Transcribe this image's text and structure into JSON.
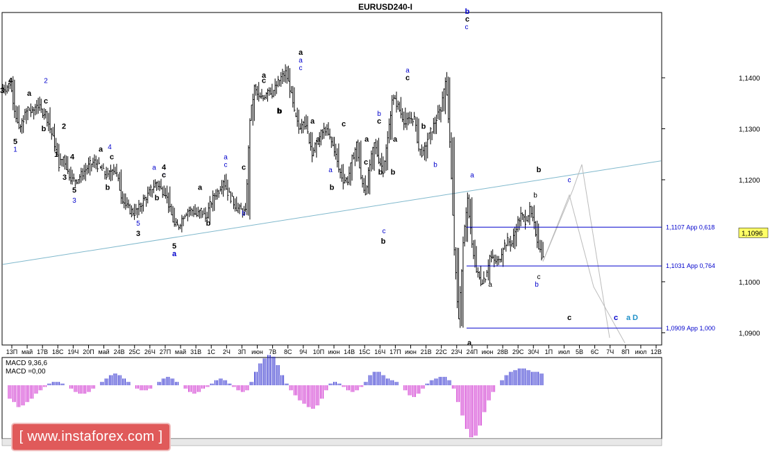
{
  "chart_data": {
    "type": "candlestick",
    "title": "EURUSD240-I",
    "ylim": [
      1.0876,
      1.1528
    ],
    "y_ticks": [
      "1,1400",
      "1,1300",
      "1,1200",
      "1,1000",
      "1,0900"
    ],
    "current_price": "1,1096",
    "x_ticks": [
      "13П",
      "май",
      "17В",
      "18С",
      "19Ч",
      "20П",
      "май",
      "24В",
      "25С",
      "26Ч",
      "27П",
      "май",
      "31В",
      "1С",
      "2Ч",
      "3П",
      "июн",
      "7В",
      "8С",
      "9Ч",
      "10П",
      "июн",
      "14В",
      "15С",
      "16Ч",
      "17П",
      "июн",
      "21В",
      "22С",
      "23Ч",
      "24П",
      "июн",
      "28В",
      "29С",
      "30Ч",
      "1П",
      "июл",
      "5В",
      "6С",
      "7Ч",
      "8П",
      "июл",
      "12В"
    ],
    "levels": [
      {
        "price": 1.1107,
        "label": "1,1107 Арр 0,618"
      },
      {
        "price": 1.1031,
        "label": "1,1031 Арр 0,764"
      },
      {
        "price": 1.0909,
        "label": "1,0909 Арр 1,000"
      }
    ],
    "trendline": {
      "start_price": 1.1034,
      "end_price": 1.1237
    },
    "price_path": [
      1.138,
      1.139,
      1.134,
      1.1295,
      1.132,
      1.134,
      1.133,
      1.135,
      1.1335,
      1.133,
      1.13,
      1.127,
      1.123,
      1.1245,
      1.1215,
      1.12,
      1.12,
      1.121,
      1.122,
      1.123,
      1.1235,
      1.1225,
      1.1215,
      1.1205,
      1.1225,
      1.121,
      1.117,
      1.115,
      1.114,
      1.1135,
      1.1145,
      1.116,
      1.117,
      1.1185,
      1.1195,
      1.118,
      1.1175,
      1.114,
      1.111,
      1.111,
      1.113,
      1.114,
      1.114,
      1.113,
      1.114,
      1.1125,
      1.115,
      1.117,
      1.118,
      1.12,
      1.1175,
      1.116,
      1.1145,
      1.114,
      1.1135,
      1.132,
      1.138,
      1.136,
      1.136,
      1.138,
      1.137,
      1.1385,
      1.14,
      1.141,
      1.138,
      1.133,
      1.13,
      1.132,
      1.129,
      1.1255,
      1.127,
      1.129,
      1.13,
      1.128,
      1.126,
      1.122,
      1.12,
      1.12,
      1.124,
      1.127,
      1.12,
      1.1175,
      1.123,
      1.127,
      1.124,
      1.122,
      1.128,
      1.136,
      1.135,
      1.133,
      1.131,
      1.132,
      1.132,
      1.126,
      1.125,
      1.128,
      1.13,
      1.132,
      1.134,
      1.14,
      1.128,
      1.106,
      1.092,
      1.108,
      1.116,
      1.107,
      1.102,
      1.1,
      1.101,
      1.105,
      1.104,
      1.104,
      1.107,
      1.108,
      1.1075,
      1.111,
      1.113,
      1.112,
      1.114,
      1.111,
      1.107,
      1.1045
    ],
    "projection": [
      [
        1.104,
        1.118,
        1.123,
        1.089
      ],
      [
        1.104,
        1.117,
        1.099,
        1.088
      ]
    ],
    "wave_labels": [
      {
        "t": "3",
        "c": "#000",
        "b": 1,
        "p": 1.137
      },
      {
        "t": "4",
        "c": "#000",
        "b": 1,
        "p": 1.139
      },
      {
        "t": "5",
        "c": "#000",
        "b": 1,
        "p": 1.127
      },
      {
        "t": "1",
        "c": "#0000cc",
        "b": 0,
        "p": 1.1255
      },
      {
        "t": "2",
        "c": "#0000cc",
        "b": 0,
        "p": 1.139
      },
      {
        "t": "a",
        "c": "#000",
        "b": 1,
        "p": 1.1365
      },
      {
        "t": "c",
        "c": "#000",
        "b": 1,
        "p": 1.135
      },
      {
        "t": "b",
        "c": "#000",
        "b": 1,
        "p": 1.1295
      },
      {
        "t": "2",
        "c": "#000",
        "b": 1,
        "p": 1.13
      },
      {
        "t": "1",
        "c": "#000",
        "b": 1,
        "p": 1.1245
      },
      {
        "t": "3",
        "c": "#000",
        "b": 1,
        "p": 1.12
      },
      {
        "t": "4",
        "c": "#000",
        "b": 1,
        "p": 1.124
      },
      {
        "t": "5",
        "c": "#000",
        "b": 1,
        "p": 1.1175
      },
      {
        "t": "3",
        "c": "#0000cc",
        "b": 0,
        "p": 1.1155
      },
      {
        "t": "4",
        "c": "#0000cc",
        "b": 0,
        "p": 1.126
      },
      {
        "t": "a",
        "c": "#000",
        "b": 1,
        "p": 1.1255
      },
      {
        "t": "c",
        "c": "#000",
        "b": 1,
        "p": 1.124
      },
      {
        "t": "b",
        "c": "#000",
        "b": 1,
        "p": 1.118
      },
      {
        "t": "5",
        "c": "#0000cc",
        "b": 0,
        "p": 1.111
      },
      {
        "t": "3",
        "c": "#000",
        "b": 1,
        "p": 1.109
      },
      {
        "t": "a",
        "c": "#0000cc",
        "b": 0,
        "p": 1.122
      },
      {
        "t": "c",
        "c": "#0000cc",
        "b": 0,
        "p": 1.1205
      },
      {
        "t": "4",
        "c": "#000",
        "b": 1,
        "p": 1.122
      },
      {
        "t": "c",
        "c": "#000",
        "b": 1,
        "p": 1.1205
      },
      {
        "t": "b",
        "c": "#000",
        "b": 1,
        "p": 1.116
      },
      {
        "t": "5",
        "c": "#000",
        "b": 1,
        "p": 1.1065
      },
      {
        "t": "a",
        "c": "#0000cc",
        "b": 1,
        "p": 1.105
      },
      {
        "t": "a",
        "c": "#000",
        "b": 1,
        "p": 1.118
      },
      {
        "t": "b",
        "c": "#000",
        "b": 1,
        "p": 1.111
      },
      {
        "t": "a",
        "c": "#0000cc",
        "b": 0,
        "p": 1.124
      },
      {
        "t": "c",
        "c": "#0000cc",
        "b": 0,
        "p": 1.1225
      },
      {
        "t": "c",
        "c": "#000",
        "b": 1,
        "p": 1.122
      },
      {
        "t": "b",
        "c": "#0000cc",
        "b": 0,
        "p": 1.113
      },
      {
        "t": "a",
        "c": "#000",
        "b": 1,
        "p": 1.1445
      },
      {
        "t": "a",
        "c": "#0000cc",
        "b": 0,
        "p": 1.143
      },
      {
        "t": "c",
        "c": "#0000cc",
        "b": 0,
        "p": 1.1415
      },
      {
        "t": "a",
        "c": "#000",
        "b": 1,
        "p": 1.14
      },
      {
        "t": "c",
        "c": "#000",
        "b": 1,
        "p": 1.139
      },
      {
        "t": "b",
        "c": "#000",
        "b": 1,
        "p": 1.133
      },
      {
        "t": "b",
        "c": "#000",
        "b": 1,
        "p": 1.133
      },
      {
        "t": "a",
        "c": "#000",
        "b": 1,
        "p": 1.1275
      },
      {
        "t": "c",
        "c": "#000",
        "b": 1,
        "p": 1.1305
      },
      {
        "t": "a",
        "c": "#000",
        "b": 1,
        "p": 1.131
      },
      {
        "t": "c",
        "c": "#000",
        "b": 1,
        "p": 1.123
      },
      {
        "t": "a",
        "c": "#0000cc",
        "b": 0,
        "p": 1.1215
      },
      {
        "t": "b",
        "c": "#000",
        "b": 1,
        "p": 1.118
      },
      {
        "t": "b",
        "c": "#0000cc",
        "b": 0,
        "p": 1.1325
      },
      {
        "t": "c",
        "c": "#000",
        "b": 1,
        "p": 1.131
      },
      {
        "t": "a",
        "c": "#000",
        "b": 1,
        "p": 1.1275
      },
      {
        "t": "b",
        "c": "#000",
        "b": 1,
        "p": 1.121
      },
      {
        "t": "c",
        "c": "#0000cc",
        "b": 0,
        "p": 1.1095
      },
      {
        "t": "b",
        "c": "#000",
        "b": 1,
        "p": 1.1075
      },
      {
        "t": "a",
        "c": "#000",
        "b": 1,
        "p": 1.1275
      },
      {
        "t": "b",
        "c": "#000",
        "b": 1,
        "p": 1.121
      },
      {
        "t": "a",
        "c": "#0000cc",
        "b": 0,
        "p": 1.141
      },
      {
        "t": "c",
        "c": "#000",
        "b": 1,
        "p": 1.1395
      },
      {
        "t": "b",
        "c": "#000",
        "b": 1,
        "p": 1.13
      },
      {
        "t": "b",
        "c": "#0000cc",
        "b": 0,
        "p": 1.1225
      },
      {
        "t": "b",
        "c": "#0000cc",
        "b": 1,
        "p": 1.1525
      },
      {
        "t": "c",
        "c": "#000",
        "b": 1,
        "p": 1.151
      },
      {
        "t": "c",
        "c": "#0000cc",
        "b": 0,
        "p": 1.1495
      },
      {
        "t": "a",
        "c": "#0000cc",
        "b": 0,
        "p": 1.1205
      },
      {
        "t": "a",
        "c": "#000",
        "b": 1,
        "p": 1.0875
      },
      {
        "t": "a",
        "c": "#000",
        "b": 0,
        "p": 1.099
      },
      {
        "t": "b",
        "c": "#000",
        "b": 0,
        "p": 1.1165
      },
      {
        "t": "c",
        "c": "#000",
        "b": 0,
        "p": 1.1005
      },
      {
        "t": "b",
        "c": "#0000cc",
        "b": 0,
        "p": 1.099
      },
      {
        "t": "b",
        "c": "#000",
        "b": 1,
        "p": 1.1215
      },
      {
        "t": "c",
        "c": "#0000cc",
        "b": 0,
        "p": 1.1195
      },
      {
        "t": "c",
        "c": "#000",
        "b": 1,
        "p": 1.0925
      },
      {
        "t": "c",
        "c": "#0000cc",
        "b": 1,
        "p": 1.0925
      },
      {
        "t": "a",
        "c": "#1e90c8",
        "b": 1,
        "p": 1.0925
      },
      {
        "t": "D",
        "c": "#1e90c8",
        "b": 1,
        "p": 1.0925
      }
    ],
    "indicator": {
      "name": "MACD",
      "params": "MACD 9,36,6",
      "value": "MACD =0,00"
    },
    "macd_values": [
      -0.0008,
      -0.001,
      -0.0013,
      -0.0012,
      -0.001,
      -0.0008,
      -0.0005,
      -0.0003,
      -0.0001,
      0.0001,
      0.0002,
      0.0002,
      0.0001,
      0.0,
      -0.0002,
      -0.0004,
      -0.0005,
      -0.0005,
      -0.0004,
      -0.0002,
      0.0,
      0.0002,
      0.0004,
      0.0006,
      0.0007,
      0.0006,
      0.0004,
      0.0002,
      0.0,
      -0.0002,
      -0.0003,
      -0.0003,
      -0.0002,
      0.0,
      0.0002,
      0.0004,
      0.0005,
      0.0004,
      0.0002,
      0.0,
      -0.0002,
      -0.0004,
      -0.0005,
      -0.0004,
      -0.0002,
      -0.0001,
      0.0001,
      0.0003,
      0.0004,
      0.0003,
      0.0001,
      -0.0001,
      -0.0003,
      -0.0004,
      -0.0003,
      0.0002,
      0.0008,
      0.0013,
      0.0016,
      0.0018,
      0.0017,
      0.0012,
      0.0006,
      0.0001,
      -0.0003,
      -0.0006,
      -0.0009,
      -0.0011,
      -0.0013,
      -0.0014,
      -0.0012,
      -0.0008,
      -0.0003,
      0.0001,
      0.0002,
      0.0001,
      -0.0001,
      -0.0003,
      -0.0004,
      -0.0003,
      -0.0001,
      0.0002,
      0.0006,
      0.0008,
      0.0008,
      0.0006,
      0.0004,
      0.0003,
      0.0002,
      0.0,
      -0.0003,
      -0.0006,
      -0.0007,
      -0.0005,
      -0.0002,
      0.0001,
      0.0003,
      0.0004,
      0.0005,
      0.0005,
      0.0003,
      -0.0002,
      -0.001,
      -0.0018,
      -0.0026,
      -0.0031,
      -0.003,
      -0.0024,
      -0.0016,
      -0.0009,
      -0.0004,
      0.0,
      0.0003,
      0.0006,
      0.0008,
      0.0009,
      0.001,
      0.001,
      0.0009,
      0.0008,
      0.0008,
      0.0007
    ]
  },
  "watermark": "[ www.instaforex.com ]"
}
